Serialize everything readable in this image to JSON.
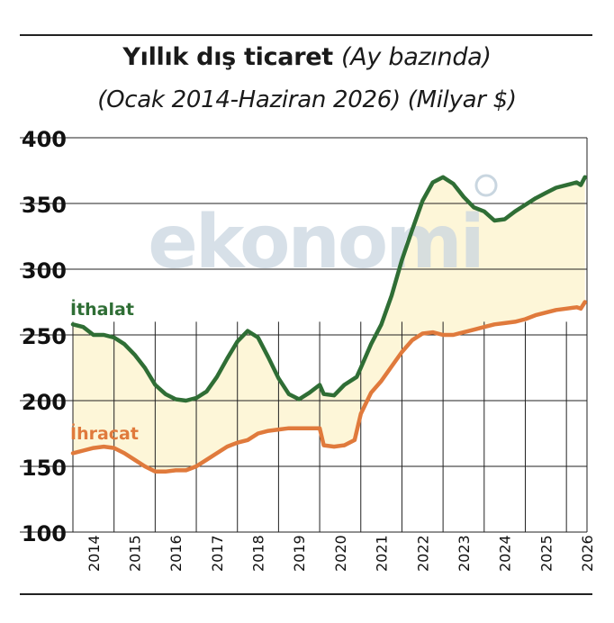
{
  "title": "Yıllık dış ticaret",
  "title_note": "(Ay bazında)",
  "subtitle": "(Ocak 2014-Haziran 2026) (Milyar $)",
  "watermark": "ekonomi",
  "colors": {
    "import": "#2f6e35",
    "export": "#e07a3c",
    "fill": "#fdf6d8",
    "grid": "#222222",
    "watermark": "#c9d6e0"
  },
  "chart_data": {
    "type": "line",
    "title": "Yıllık dış ticaret",
    "subtitle": "(Ocak 2014-Haziran 2026) (Milyar $)",
    "ylim": [
      100,
      400
    ],
    "yticks": [
      100,
      150,
      200,
      250,
      300,
      350,
      400
    ],
    "x_tick_labels": [
      "2014",
      "2015",
      "2016",
      "2017",
      "2018",
      "2019",
      "2020",
      "2021",
      "2022",
      "2023",
      "2024",
      "2025",
      "2026"
    ],
    "xlim": [
      2014.0,
      2026.5
    ],
    "grid": true,
    "fill_between": true,
    "series": [
      {
        "name": "İthalat",
        "color": "#2f6e35",
        "points": [
          [
            2014.0,
            258
          ],
          [
            2014.25,
            256
          ],
          [
            2014.5,
            250
          ],
          [
            2014.75,
            250
          ],
          [
            2015.0,
            248
          ],
          [
            2015.25,
            243
          ],
          [
            2015.5,
            235
          ],
          [
            2015.75,
            225
          ],
          [
            2016.0,
            212
          ],
          [
            2016.25,
            205
          ],
          [
            2016.5,
            201
          ],
          [
            2016.75,
            200
          ],
          [
            2017.0,
            202
          ],
          [
            2017.25,
            207
          ],
          [
            2017.5,
            218
          ],
          [
            2017.75,
            232
          ],
          [
            2018.0,
            245
          ],
          [
            2018.25,
            253
          ],
          [
            2018.5,
            248
          ],
          [
            2018.75,
            233
          ],
          [
            2019.0,
            217
          ],
          [
            2019.25,
            205
          ],
          [
            2019.5,
            201
          ],
          [
            2019.75,
            206
          ],
          [
            2020.0,
            212
          ],
          [
            2020.1,
            205
          ],
          [
            2020.35,
            204
          ],
          [
            2020.6,
            212
          ],
          [
            2020.9,
            218
          ],
          [
            2021.0,
            225
          ],
          [
            2021.25,
            243
          ],
          [
            2021.5,
            258
          ],
          [
            2021.75,
            280
          ],
          [
            2022.0,
            307
          ],
          [
            2022.25,
            330
          ],
          [
            2022.5,
            352
          ],
          [
            2022.75,
            366
          ],
          [
            2023.0,
            370
          ],
          [
            2023.25,
            365
          ],
          [
            2023.5,
            355
          ],
          [
            2023.75,
            347
          ],
          [
            2024.0,
            344
          ],
          [
            2024.25,
            337
          ],
          [
            2024.5,
            338
          ],
          [
            2024.75,
            344
          ],
          [
            2025.0,
            349
          ],
          [
            2025.25,
            354
          ],
          [
            2025.5,
            358
          ],
          [
            2025.75,
            362
          ],
          [
            2026.0,
            364
          ],
          [
            2026.25,
            366
          ],
          [
            2026.35,
            364
          ],
          [
            2026.45,
            370
          ]
        ]
      },
      {
        "name": "İhracat",
        "color": "#e07a3c",
        "points": [
          [
            2014.0,
            160
          ],
          [
            2014.25,
            162
          ],
          [
            2014.5,
            164
          ],
          [
            2014.75,
            165
          ],
          [
            2015.0,
            164
          ],
          [
            2015.25,
            160
          ],
          [
            2015.5,
            155
          ],
          [
            2015.75,
            150
          ],
          [
            2016.0,
            146
          ],
          [
            2016.25,
            146
          ],
          [
            2016.5,
            147
          ],
          [
            2016.75,
            147
          ],
          [
            2017.0,
            150
          ],
          [
            2017.25,
            155
          ],
          [
            2017.5,
            160
          ],
          [
            2017.75,
            165
          ],
          [
            2018.0,
            168
          ],
          [
            2018.25,
            170
          ],
          [
            2018.5,
            175
          ],
          [
            2018.75,
            177
          ],
          [
            2019.0,
            178
          ],
          [
            2019.25,
            179
          ],
          [
            2019.5,
            179
          ],
          [
            2019.75,
            179
          ],
          [
            2020.0,
            179
          ],
          [
            2020.1,
            166
          ],
          [
            2020.35,
            165
          ],
          [
            2020.6,
            166
          ],
          [
            2020.85,
            170
          ],
          [
            2021.0,
            190
          ],
          [
            2021.25,
            206
          ],
          [
            2021.5,
            215
          ],
          [
            2021.75,
            226
          ],
          [
            2022.0,
            237
          ],
          [
            2022.25,
            246
          ],
          [
            2022.5,
            251
          ],
          [
            2022.75,
            252
          ],
          [
            2023.0,
            250
          ],
          [
            2023.25,
            250
          ],
          [
            2023.5,
            252
          ],
          [
            2023.75,
            254
          ],
          [
            2024.0,
            256
          ],
          [
            2024.25,
            258
          ],
          [
            2024.5,
            259
          ],
          [
            2024.75,
            260
          ],
          [
            2025.0,
            262
          ],
          [
            2025.25,
            265
          ],
          [
            2025.5,
            267
          ],
          [
            2025.75,
            269
          ],
          [
            2026.0,
            270
          ],
          [
            2026.25,
            271
          ],
          [
            2026.35,
            270
          ],
          [
            2026.45,
            275
          ]
        ]
      }
    ]
  }
}
